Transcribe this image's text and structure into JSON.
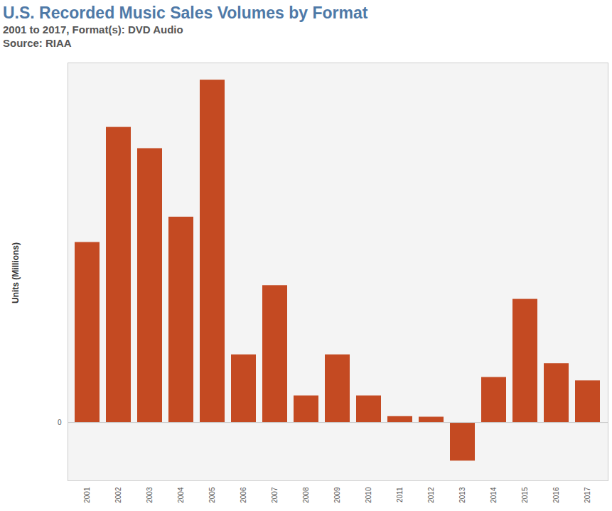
{
  "chart_data": {
    "type": "bar",
    "title": "U.S. Recorded Music Sales Volumes by Format",
    "subtitle": "2001 to 2017, Format(s): DVD Audio\nSource: RIAA",
    "y_label": "Units (Millions)",
    "categories": [
      "2001",
      "2002",
      "2003",
      "2004",
      "2005",
      "2006",
      "2007",
      "2008",
      "2009",
      "2010",
      "2011",
      "2012",
      "2013",
      "2014",
      "2015",
      "2016",
      "2017"
    ],
    "values": [
      0.263,
      0.431,
      0.4,
      0.3,
      0.5,
      0.099,
      0.2,
      0.039,
      0.099,
      0.039,
      0.009,
      0.008,
      -0.056,
      0.066,
      0.18,
      0.086,
      0.061
    ],
    "color": "#c44a22",
    "ylim": [
      -0.085,
      0.525
    ],
    "yticks": [
      0
    ],
    "grid": false
  }
}
